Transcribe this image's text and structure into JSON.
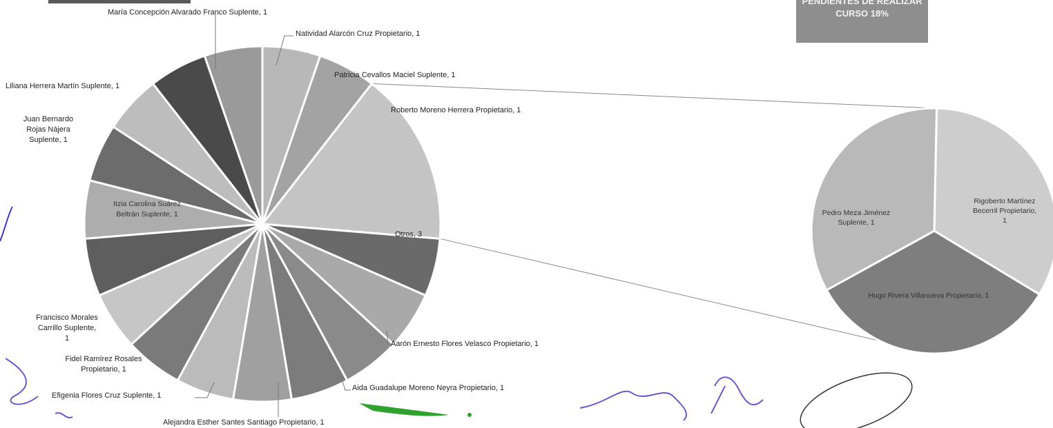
{
  "status_box": {
    "line1": "PENDIENTES DE REALIZAR",
    "line2": "CURSO 18%"
  },
  "chart_data": {
    "type": "pie",
    "subtype": "pie-of-pie",
    "main_pie": [
      {
        "label": "Natividad Alarcón Cruz Propietario, 1",
        "value": 1,
        "color": "#9a9a9a"
      },
      {
        "label": "Patricia Cevallos Maciel Suplente, 1",
        "value": 1,
        "color": "#b8b8b8"
      },
      {
        "label": "Roberto Moreno Herrera Propietario, 1",
        "value": 1,
        "color": "#a3a3a3"
      },
      {
        "label": "Otros, 3",
        "value": 3,
        "color": "#c4c4c4"
      },
      {
        "label": "Aarón Ernesto Flores Velasco Propietario, 1",
        "value": 1,
        "color": "#6a6a6a"
      },
      {
        "label": "Aida Guadalupe Moreno Neyra Propietario, 1",
        "value": 1,
        "color": "#a9a9a9"
      },
      {
        "label": "",
        "value": 1,
        "color": "#8a8a8a"
      },
      {
        "label": "Alejandra Esther Santes Santiago Propietario, 1",
        "value": 1,
        "color": "#7c7c7c"
      },
      {
        "label": "",
        "value": 1,
        "color": "#a0a0a0"
      },
      {
        "label": "Efigenia Flores Cruz Suplente, 1",
        "value": 1,
        "color": "#bbbbbb"
      },
      {
        "label": "Fidel  Ramírez Rosales Propietario, 1",
        "value": 1,
        "color": "#7a7a7a"
      },
      {
        "label": "Francisco Morales Carrillo Suplente, 1",
        "value": 1,
        "color": "#c6c6c6"
      },
      {
        "label": "",
        "value": 1,
        "color": "#5e5e5e"
      },
      {
        "label": "Itzia Carolina Suárez Beltrán Suplente, 1",
        "value": 1,
        "color": "#adadad"
      },
      {
        "label": "Juan Bernardo Rojas Nájera Suplente, 1",
        "value": 1,
        "color": "#6c6c6c"
      },
      {
        "label": "Liliana Herrera Martín Suplente, 1",
        "value": 1,
        "color": "#bdbdbd"
      },
      {
        "label": "María Concepción  Alvarado Franco Suplente, 1",
        "value": 1,
        "color": "#4a4a4a"
      }
    ],
    "secondary_pie": [
      {
        "label": "Rigoberto  Martínez Becerril Propietario, 1",
        "value": 1,
        "color": "#cdcdcd"
      },
      {
        "label": "Hugo Rivera Villanueva Propietario, 1",
        "value": 1,
        "color": "#7e7e7e"
      },
      {
        "label": "Pedro  Meza Jiménez Suplente, 1",
        "value": 1,
        "color": "#b9b9b9"
      }
    ]
  }
}
